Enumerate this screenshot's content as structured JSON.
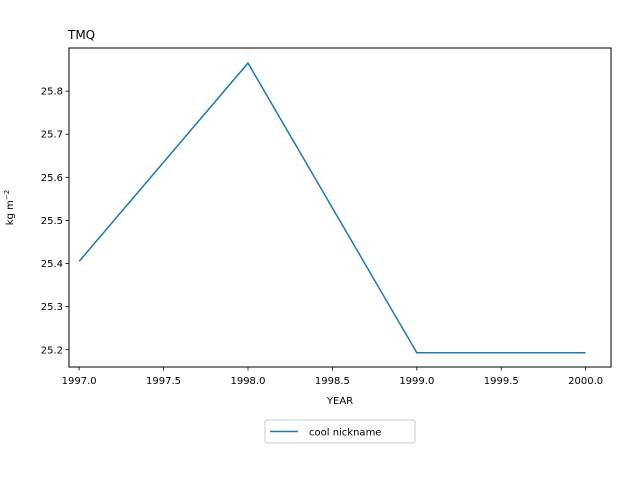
{
  "chart_data": {
    "type": "line",
    "title": "TMQ",
    "xlabel": "YEAR",
    "ylabel": "kg m",
    "ylabel_superscript": "−2",
    "x": [
      1997.0,
      1998.0,
      1999.0,
      2000.0
    ],
    "series": [
      {
        "name": "cool nickname",
        "values": [
          25.405,
          25.865,
          25.193,
          25.193
        ],
        "color": "#1f77b4"
      }
    ],
    "xlim": [
      1996.94,
      2000.15
    ],
    "ylim": [
      25.16,
      25.9
    ],
    "xticks": [
      1997.0,
      1997.5,
      1998.0,
      1998.5,
      1999.0,
      1999.5,
      2000.0
    ],
    "xtick_labels": [
      "1997.0",
      "1997.5",
      "1998.0",
      "1998.5",
      "1999.0",
      "1999.5",
      "2000.0"
    ],
    "yticks": [
      25.2,
      25.3,
      25.4,
      25.5,
      25.6,
      25.7,
      25.8
    ],
    "ytick_labels": [
      "25.2",
      "25.3",
      "25.4",
      "25.5",
      "25.6",
      "25.7",
      "25.8"
    ],
    "grid": false,
    "legend_position": "bottom-center"
  }
}
